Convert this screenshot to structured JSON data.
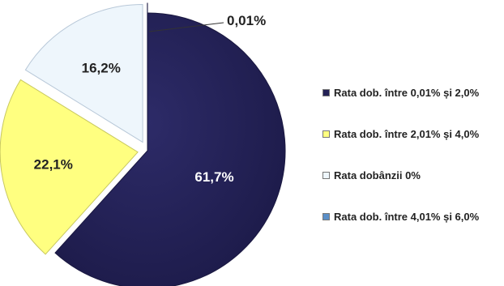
{
  "chart_data": {
    "type": "pie",
    "title": "",
    "series": [
      {
        "name": "Rata dob. între 0,01% și 2,0%",
        "value": 61.7,
        "label": "61,7%",
        "color": "#232155"
      },
      {
        "name": "Rata dob. între 2,01% și 4,0%",
        "value": 22.1,
        "label": "22,1%",
        "color": "#ffff80"
      },
      {
        "name": "Rata dobânzii 0%",
        "value": 16.2,
        "label": "16,2%",
        "color": "#eef6fc"
      },
      {
        "name": "Rata dob. între 4,01% și 6,0%",
        "value": 0.01,
        "label": "0,01%",
        "color": "#5a8fc8"
      }
    ],
    "legend_position": "right",
    "exploded": true
  }
}
